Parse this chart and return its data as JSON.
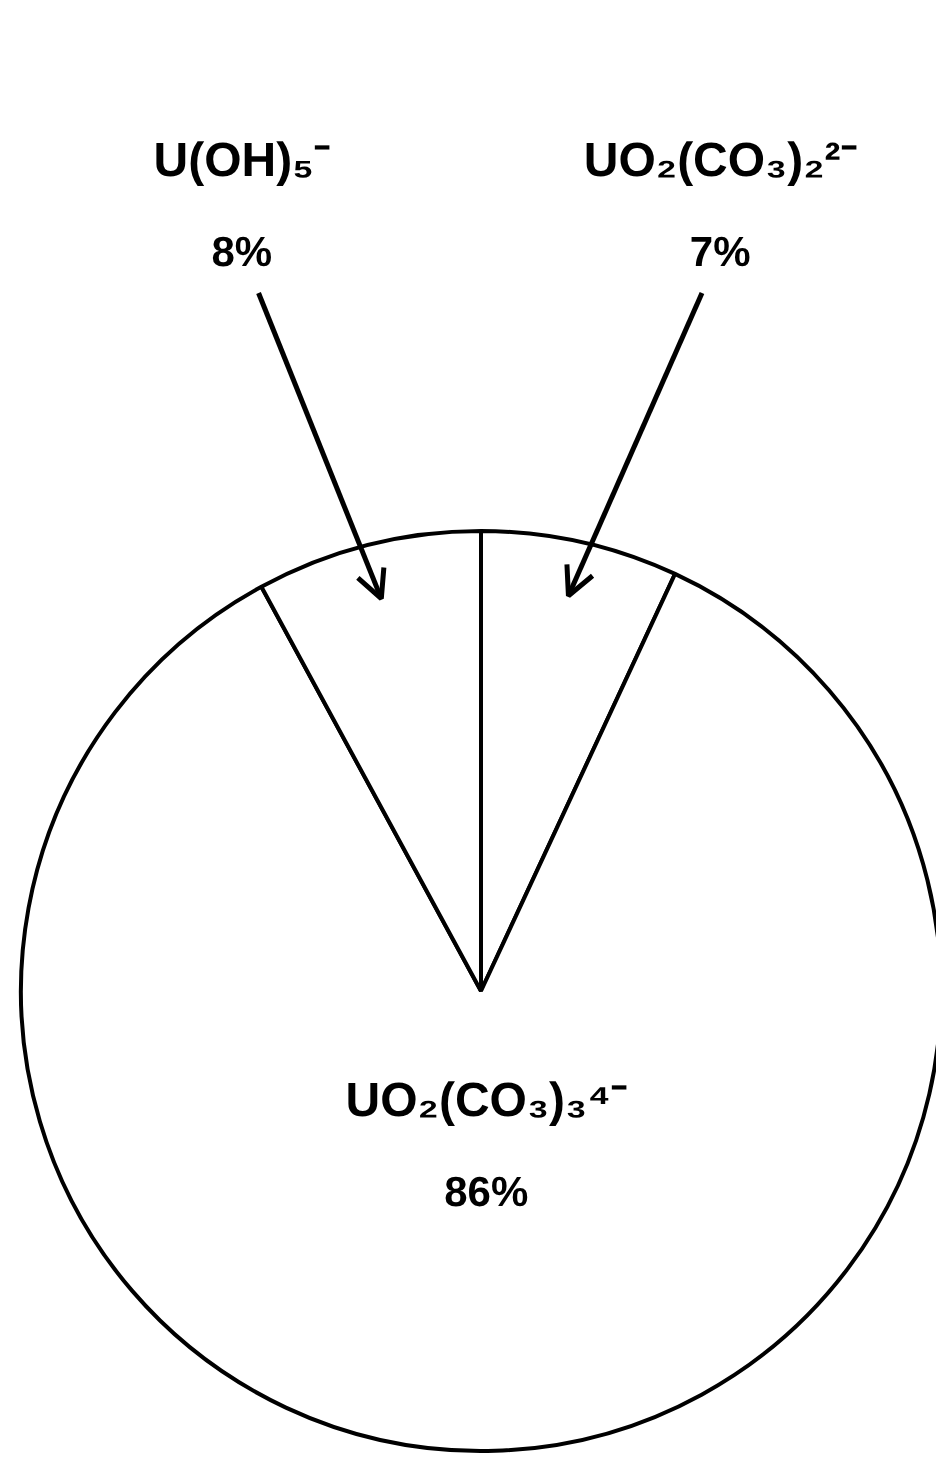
{
  "chart_data": {
    "type": "pie",
    "categories": [
      "UO₂(CO₃)₂²⁻",
      "UO₂(CO₃)₃⁴⁻",
      "U(OH)₅⁻"
    ],
    "values": [
      7,
      86,
      8
    ],
    "value_labels": [
      "7%",
      "86%",
      "8%"
    ],
    "colors": [
      "#ffffff",
      "#ffffff",
      "#ffffff"
    ]
  }
}
